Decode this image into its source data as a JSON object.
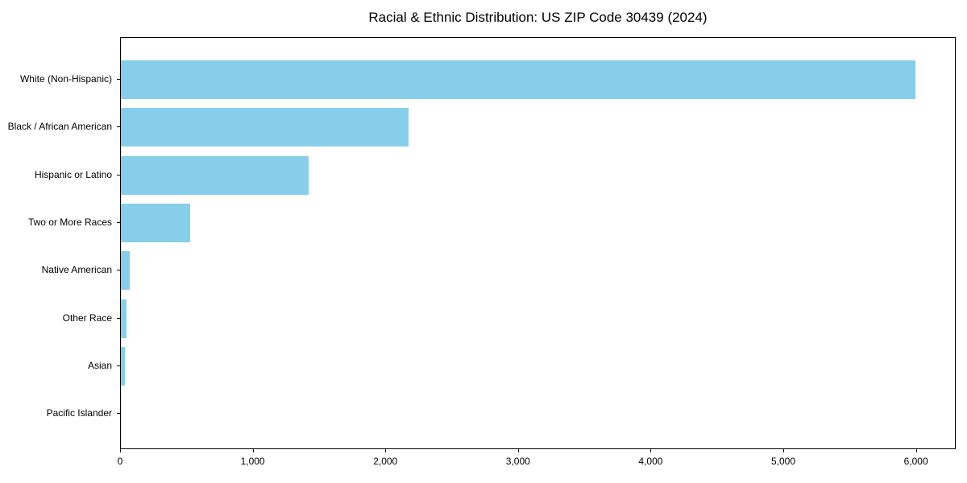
{
  "chart_data": {
    "type": "bar",
    "orientation": "horizontal",
    "title": "Racial & Ethnic Distribution: US ZIP Code 30439 (2024)",
    "categories": [
      "White (Non-Hispanic)",
      "Black / African American",
      "Hispanic or Latino",
      "Two or More Races",
      "Native American",
      "Other Race",
      "Asian",
      "Pacific Islander"
    ],
    "values": [
      6000,
      2170,
      1420,
      525,
      65,
      40,
      30,
      0
    ],
    "xlabel": "",
    "ylabel": "",
    "xlim": [
      0,
      6300
    ],
    "xticks": [
      0,
      1000,
      2000,
      3000,
      4000,
      5000,
      6000
    ],
    "xtick_labels": [
      "0",
      "1,000",
      "2,000",
      "3,000",
      "4,000",
      "5,000",
      "6,000"
    ],
    "bar_color": "#87CEEB",
    "axis_color": "#000000",
    "background_color": "#FFFFFF",
    "grid": false,
    "legend": "none"
  }
}
